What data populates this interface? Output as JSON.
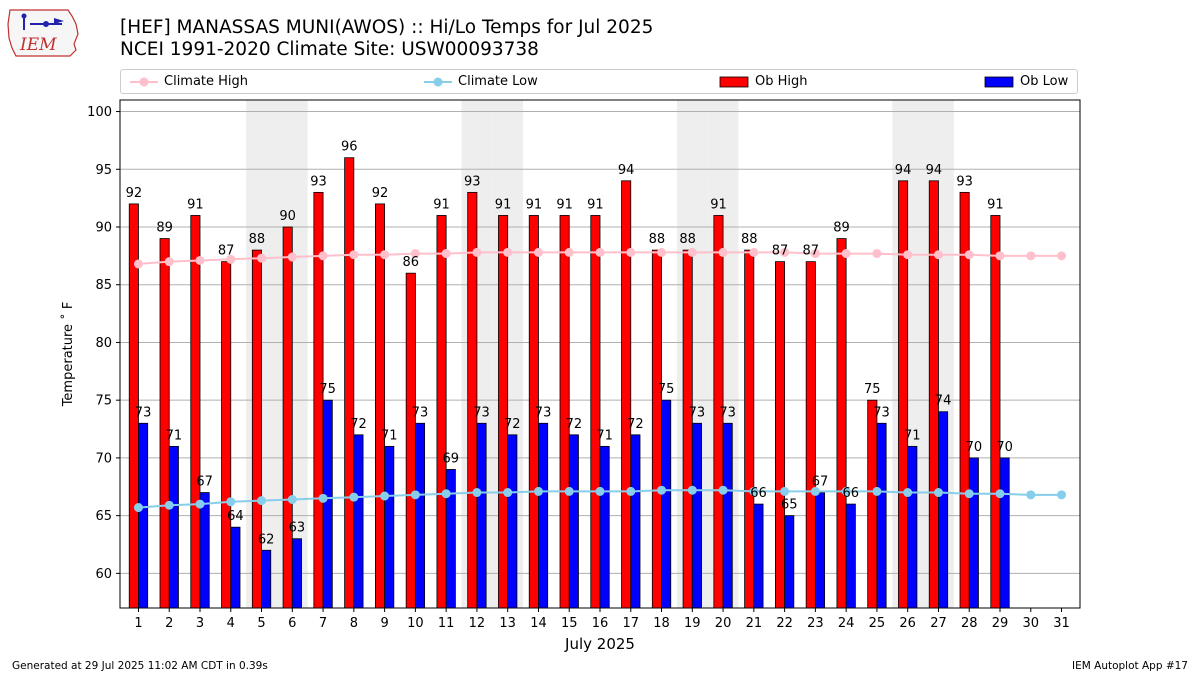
{
  "header": {
    "title": "[HEF] MANASSAS MUNI(AWOS) :: Hi/Lo Temps for Jul 2025",
    "subtitle": "NCEI 1991-2020 Climate Site: USW00093738",
    "logo_text": "IEM"
  },
  "footer": {
    "generated": "Generated at 29 Jul 2025 11:02 AM CDT in 0.39s",
    "app": "IEM Autoplot App #17"
  },
  "chart_data": {
    "type": "bar",
    "xlabel": "July 2025",
    "ylabel": "Temperature ˚ F",
    "ylim": [
      57,
      101
    ],
    "yticks": [
      60,
      65,
      70,
      75,
      80,
      85,
      90,
      95,
      100
    ],
    "grid": "horizontal",
    "legend_placement": "top",
    "categories": [
      "1",
      "2",
      "3",
      "4",
      "5",
      "6",
      "7",
      "8",
      "9",
      "10",
      "11",
      "12",
      "13",
      "14",
      "15",
      "16",
      "17",
      "18",
      "19",
      "20",
      "21",
      "22",
      "23",
      "24",
      "25",
      "26",
      "27",
      "28",
      "29",
      "30",
      "31"
    ],
    "weekend_days": [
      5,
      6,
      12,
      13,
      19,
      20,
      26,
      27
    ],
    "series": [
      {
        "name": "Climate High",
        "kind": "line",
        "color": "#ffc0cb",
        "values": [
          86.8,
          87.0,
          87.1,
          87.2,
          87.3,
          87.4,
          87.5,
          87.6,
          87.6,
          87.7,
          87.7,
          87.8,
          87.8,
          87.8,
          87.8,
          87.8,
          87.8,
          87.8,
          87.8,
          87.8,
          87.8,
          87.8,
          87.7,
          87.7,
          87.7,
          87.6,
          87.6,
          87.6,
          87.5,
          87.5,
          87.5
        ]
      },
      {
        "name": "Climate Low",
        "kind": "line",
        "color": "#87ceeb",
        "values": [
          65.7,
          65.9,
          66.0,
          66.2,
          66.3,
          66.4,
          66.5,
          66.6,
          66.7,
          66.8,
          66.9,
          67.0,
          67.0,
          67.1,
          67.1,
          67.1,
          67.1,
          67.2,
          67.2,
          67.2,
          67.1,
          67.1,
          67.1,
          67.1,
          67.1,
          67.0,
          67.0,
          66.9,
          66.9,
          66.8,
          66.8
        ]
      },
      {
        "name": "Ob High",
        "kind": "bar",
        "color": "#ff0000",
        "values": [
          92,
          89,
          91,
          87,
          88,
          90,
          93,
          96,
          92,
          86,
          91,
          93,
          91,
          91,
          91,
          91,
          94,
          88,
          88,
          91,
          88,
          87,
          87,
          89,
          75,
          94,
          94,
          93,
          91,
          null,
          null
        ]
      },
      {
        "name": "Ob Low",
        "kind": "bar",
        "color": "#0000ff",
        "values": [
          73,
          71,
          67,
          64,
          62,
          63,
          75,
          72,
          71,
          73,
          69,
          73,
          72,
          73,
          72,
          71,
          72,
          75,
          73,
          73,
          66,
          65,
          67,
          66,
          73,
          71,
          74,
          70,
          70,
          null,
          null
        ]
      }
    ]
  }
}
